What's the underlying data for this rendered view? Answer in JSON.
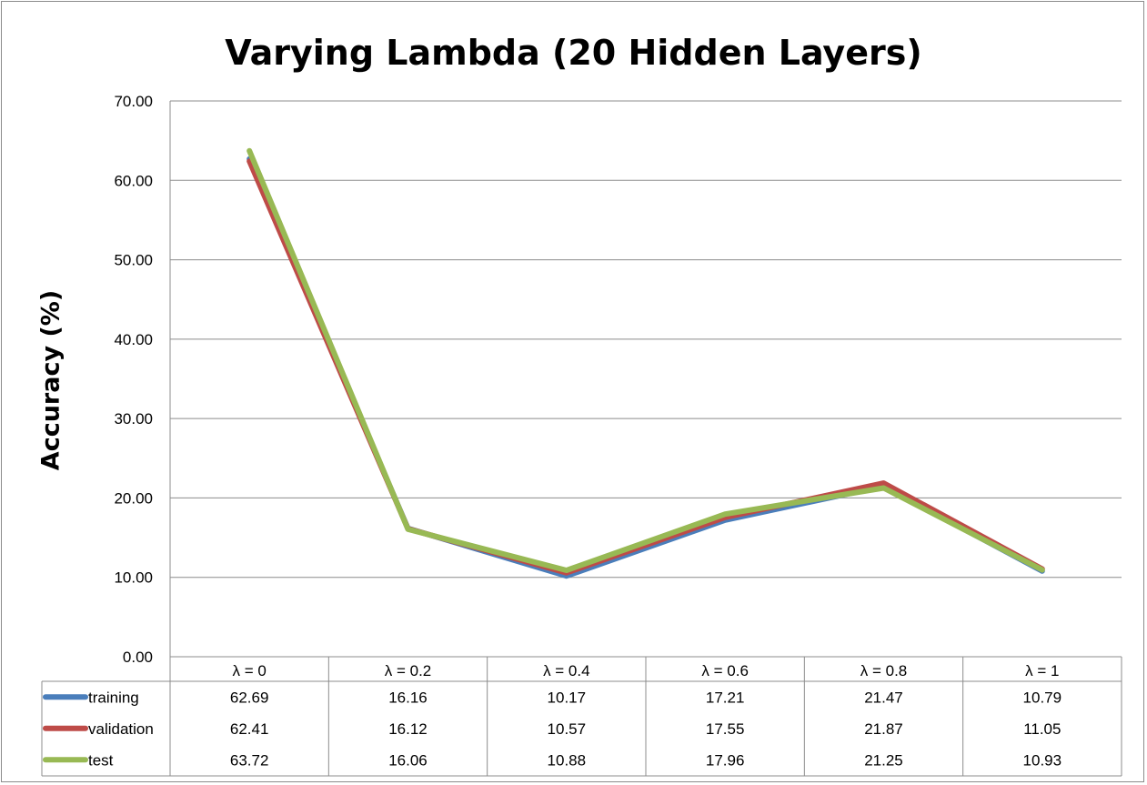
{
  "chart_data": {
    "type": "line",
    "title": "Varying Lambda (20 Hidden Layers)",
    "xlabel": "",
    "ylabel": "Accuracy (%)",
    "ylim": [
      0,
      70
    ],
    "yticks": [
      "0.00",
      "10.00",
      "20.00",
      "30.00",
      "40.00",
      "50.00",
      "60.00",
      "70.00"
    ],
    "grid": true,
    "legend_placement": "data table (bottom)",
    "categories": [
      "λ = 0",
      "λ = 0.2",
      "λ = 0.4",
      "λ = 0.6",
      "λ = 0.8",
      "λ = 1"
    ],
    "series": [
      {
        "name": "training",
        "color": "#4a7ebb",
        "values": [
          62.69,
          16.16,
          10.17,
          17.21,
          21.47,
          10.79
        ],
        "labels": [
          "62.69",
          "16.16",
          "10.17",
          "17.21",
          "21.47",
          "10.79"
        ]
      },
      {
        "name": "validation",
        "color": "#be4b48",
        "values": [
          62.41,
          16.12,
          10.57,
          17.55,
          21.87,
          11.05
        ],
        "labels": [
          "62.41",
          "16.12",
          "10.57",
          "17.55",
          "21.87",
          "11.05"
        ]
      },
      {
        "name": "test",
        "color": "#98b954",
        "values": [
          63.72,
          16.06,
          10.88,
          17.96,
          21.25,
          10.93
        ],
        "labels": [
          "63.72",
          "16.06",
          "10.88",
          "17.96",
          "21.25",
          "10.93"
        ]
      }
    ]
  }
}
